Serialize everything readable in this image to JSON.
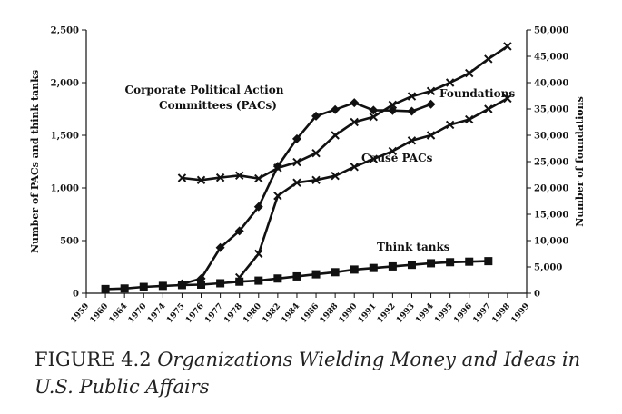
{
  "caption": {
    "prefix": "FIGURE 4.2 ",
    "title": "Organizations Wielding Money and Ideas in U.S. Public Affairs"
  },
  "chart_data": {
    "type": "line",
    "title": "",
    "categories": [
      "1959",
      "1960",
      "1964",
      "1970",
      "1974",
      "1975",
      "1976",
      "1977",
      "1978",
      "1980",
      "1982",
      "1984",
      "1986",
      "1988",
      "1990",
      "1991",
      "1992",
      "1993",
      "1994",
      "1995",
      "1996",
      "1997",
      "1998",
      "1999"
    ],
    "ylabel_left": "Number of PACs and think tanks",
    "ylabel_right": "Number of foundations",
    "ylim_left": [
      0,
      2500
    ],
    "yticks_left": [
      "0",
      "500",
      "1,000",
      "1,500",
      "2,000",
      "2,500"
    ],
    "ylim_right": [
      0,
      50000
    ],
    "yticks_right": [
      "0",
      "5,000",
      "10,000",
      "15,000",
      "20,000",
      "25,000",
      "30,000",
      "35,000",
      "40,000",
      "45,000",
      "50,000"
    ],
    "series": [
      {
        "name": "Corporate Political Action Committees (PACs)",
        "label_lines": [
          "Corporate Political Action",
          "Committees (PACs)"
        ],
        "axis": "left",
        "marker": "diamond",
        "values": [
          null,
          null,
          null,
          null,
          null,
          89,
          139,
          433,
          592,
          821,
          1206,
          1467,
          1682,
          1744,
          1809,
          1738,
          1735,
          1728,
          1795,
          null,
          null,
          null,
          null,
          null
        ]
      },
      {
        "name": "Foundations",
        "axis": "right",
        "marker": "x",
        "values": [
          null,
          null,
          null,
          null,
          null,
          null,
          null,
          null,
          3000,
          7500,
          18500,
          21000,
          21500,
          22300,
          24000,
          25500,
          27000,
          29000,
          30000,
          32000,
          33000,
          35000,
          37000,
          null
        ]
      },
      {
        "name": "Cause PACs",
        "axis": "left",
        "marker": "x",
        "values": [
          null,
          null,
          null,
          null,
          null,
          1095,
          1075,
          1098,
          1118,
          1090,
          1190,
          1245,
          1330,
          1500,
          1625,
          1675,
          1790,
          1870,
          1920,
          2000,
          2090,
          2225,
          2345,
          null
        ]
      },
      {
        "name": "Think tanks",
        "axis": "left",
        "marker": "square",
        "values": [
          null,
          40,
          45,
          60,
          70,
          78,
          82,
          95,
          110,
          120,
          140,
          160,
          180,
          200,
          225,
          240,
          255,
          270,
          285,
          295,
          300,
          305,
          null,
          null
        ]
      }
    ],
    "grid": false,
    "legend": "none"
  }
}
